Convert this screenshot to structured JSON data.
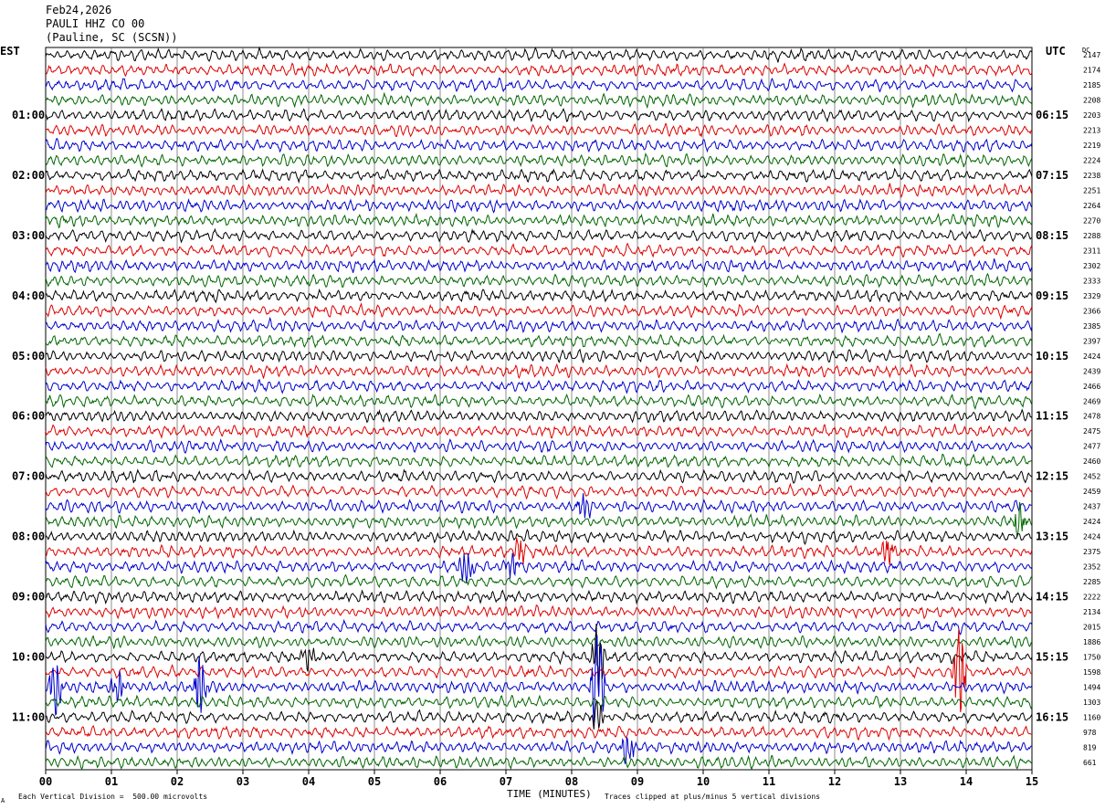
{
  "header": {
    "date": "Feb24,2026",
    "station": "PAULI HHZ CO 00",
    "location": "(Pauline, SC (SCSN))"
  },
  "chart_data": {
    "type": "line",
    "title": "Feb24,2026 PAULI HHZ CO 00 (Pauline, SC (SCSN))",
    "xlabel": "TIME (MINUTES)",
    "left_axis_label": "EST",
    "right_axis_label": "UTC",
    "dc_label": "DC",
    "x_ticks": [
      "00",
      "01",
      "02",
      "03",
      "04",
      "05",
      "06",
      "07",
      "08",
      "09",
      "10",
      "11",
      "12",
      "13",
      "14",
      "15"
    ],
    "xlim": [
      0,
      15
    ],
    "row_minutes": 15,
    "left_time_labels": [
      "01:00",
      "02:00",
      "03:00",
      "04:00",
      "05:00",
      "06:00",
      "07:00",
      "08:00",
      "09:00",
      "10:00",
      "11:00"
    ],
    "right_time_labels": [
      "06:15",
      "07:15",
      "08:15",
      "09:15",
      "10:15",
      "11:15",
      "12:15",
      "13:15",
      "14:15",
      "15:15",
      "16:15"
    ],
    "trace_colors": [
      "#000000",
      "#dd0000",
      "#0000cc",
      "#006600"
    ],
    "dc_offsets": [
      "2147",
      "2174",
      "2185",
      "2208",
      "2203",
      "2213",
      "2219",
      "2224",
      "2238",
      "2251",
      "2264",
      "2270",
      "2288",
      "2311",
      "2302",
      "2333",
      "2329",
      "2366",
      "2385",
      "2397",
      "2424",
      "2439",
      "2466",
      "2469",
      "2478",
      "2475",
      "2477",
      "2460",
      "2452",
      "2459",
      "2437",
      "2424",
      "2424",
      "2375",
      "2352",
      "2285",
      "2222",
      "2134",
      "2015",
      "1886",
      "1750",
      "1598",
      "1494",
      "1303",
      "1160",
      "978",
      "819",
      "661"
    ],
    "events": [
      {
        "trace": 30,
        "minute": 8.2,
        "amplitude": 1.2
      },
      {
        "trace": 31,
        "minute": 14.8,
        "amplitude": 1.2
      },
      {
        "trace": 33,
        "minute": 7.2,
        "amplitude": 1.1
      },
      {
        "trace": 33,
        "minute": 12.8,
        "amplitude": 1.3
      },
      {
        "trace": 34,
        "minute": 6.4,
        "amplitude": 2.2
      },
      {
        "trace": 34,
        "minute": 7.1,
        "amplitude": 1.1
      },
      {
        "trace": 40,
        "minute": 4.0,
        "amplitude": 1.0
      },
      {
        "trace": 40,
        "minute": 8.4,
        "amplitude": 3.0
      },
      {
        "trace": 41,
        "minute": 13.9,
        "amplitude": 3.4
      },
      {
        "trace": 42,
        "minute": 0.15,
        "amplitude": 2.2
      },
      {
        "trace": 42,
        "minute": 1.1,
        "amplitude": 1.4
      },
      {
        "trace": 42,
        "minute": 2.35,
        "amplitude": 2.6
      },
      {
        "trace": 42,
        "minute": 8.4,
        "amplitude": 4.5
      },
      {
        "trace": 44,
        "minute": 8.4,
        "amplitude": 1.4
      },
      {
        "trace": 46,
        "minute": 8.85,
        "amplitude": 1.5
      }
    ]
  },
  "footer": {
    "scale_note": "Each Vertical Division =  500.00 microvolts",
    "clip_note": "Traces clipped at plus/minus 5 vertical divisions",
    "corner_mark": "A"
  }
}
